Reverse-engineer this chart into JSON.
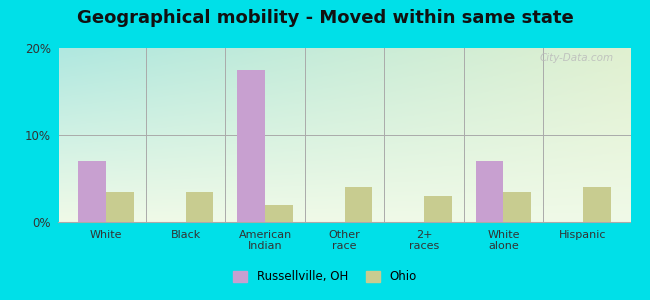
{
  "title": "Geographical mobility - Moved within same state",
  "categories": [
    "White",
    "Black",
    "American\nIndian",
    "Other\nrace",
    "2+\nraces",
    "White\nalone",
    "Hispanic"
  ],
  "russellville": [
    7.0,
    0.0,
    17.5,
    0.0,
    0.0,
    7.0,
    0.0
  ],
  "ohio": [
    3.5,
    3.5,
    2.0,
    4.0,
    3.0,
    3.5,
    4.0
  ],
  "russellville_color": "#c8a0d0",
  "ohio_color": "#c8cc90",
  "bar_width": 0.35,
  "ylim": [
    0,
    20
  ],
  "yticks": [
    0,
    10,
    20
  ],
  "ytick_labels": [
    "0%",
    "10%",
    "20%"
  ],
  "bg_color_topleft": "#b0e8e0",
  "bg_color_topright": "#e0f0d0",
  "bg_color_bottom": "#f0fae8",
  "figure_bg": "#00e0e8",
  "title_fontsize": 13,
  "watermark": "City-Data.com",
  "legend_labels": [
    "Russellville, OH",
    "Ohio"
  ]
}
